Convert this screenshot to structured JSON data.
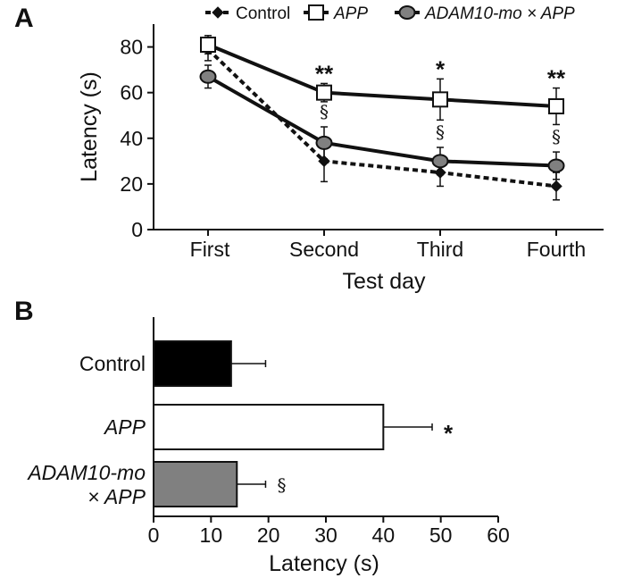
{
  "chart_data": [
    {
      "type": "line",
      "panel_label": "A",
      "xlabel": "Test day",
      "ylabel": "Latency (s)",
      "categories": [
        "First",
        "Second",
        "Third",
        "Fourth"
      ],
      "ylim": [
        0,
        90
      ],
      "yticks": [
        "0",
        "20",
        "40",
        "60",
        "80"
      ],
      "series": [
        {
          "name": "Control",
          "italic": false,
          "values": [
            79,
            30,
            25,
            19
          ],
          "errors": [
            5,
            9,
            6,
            6
          ],
          "marker": "diamond",
          "line": "dashed",
          "color": "#111111"
        },
        {
          "name": "APP",
          "italic": true,
          "values": [
            81,
            60,
            57,
            54
          ],
          "errors": [
            4,
            4,
            9,
            8
          ],
          "marker": "square",
          "line": "solid",
          "color": "#ffffff"
        },
        {
          "name": "ADAM10-mo × APP",
          "italic": true,
          "values": [
            67,
            38,
            30,
            28
          ],
          "errors": [
            5,
            7,
            6,
            6
          ],
          "marker": "circle",
          "line": "solid",
          "color": "#808080"
        }
      ],
      "annotations": [
        {
          "category": "Second",
          "text": "**",
          "type": "star",
          "series": "APP"
        },
        {
          "category": "Third",
          "text": "*",
          "type": "star",
          "series": "APP"
        },
        {
          "category": "Fourth",
          "text": "**",
          "type": "star",
          "series": "APP"
        },
        {
          "category": "Second",
          "text": "§",
          "type": "section",
          "series": "ADAM10-mo × APP"
        },
        {
          "category": "Third",
          "text": "§",
          "type": "section",
          "series": "ADAM10-mo × APP"
        },
        {
          "category": "Fourth",
          "text": "§",
          "type": "section",
          "series": "ADAM10-mo × APP"
        }
      ],
      "legend": "top"
    },
    {
      "type": "bar",
      "orientation": "horizontal",
      "panel_label": "B",
      "xlabel": "Latency (s)",
      "xlim": [
        0,
        60
      ],
      "xticks": [
        "0",
        "10",
        "20",
        "30",
        "40",
        "50",
        "60"
      ],
      "bars": [
        {
          "lines": [
            "Control"
          ],
          "italic": false,
          "value": 13.5,
          "error": 6,
          "color": "#000000",
          "annotation": ""
        },
        {
          "lines": [
            "APP"
          ],
          "italic": true,
          "value": 40,
          "error": 8.5,
          "color": "#ffffff",
          "annotation": "*"
        },
        {
          "lines": [
            "ADAM10-mo",
            "× APP"
          ],
          "italic": true,
          "value": 14.5,
          "error": 5,
          "color": "#808080",
          "annotation": "§"
        }
      ]
    }
  ]
}
